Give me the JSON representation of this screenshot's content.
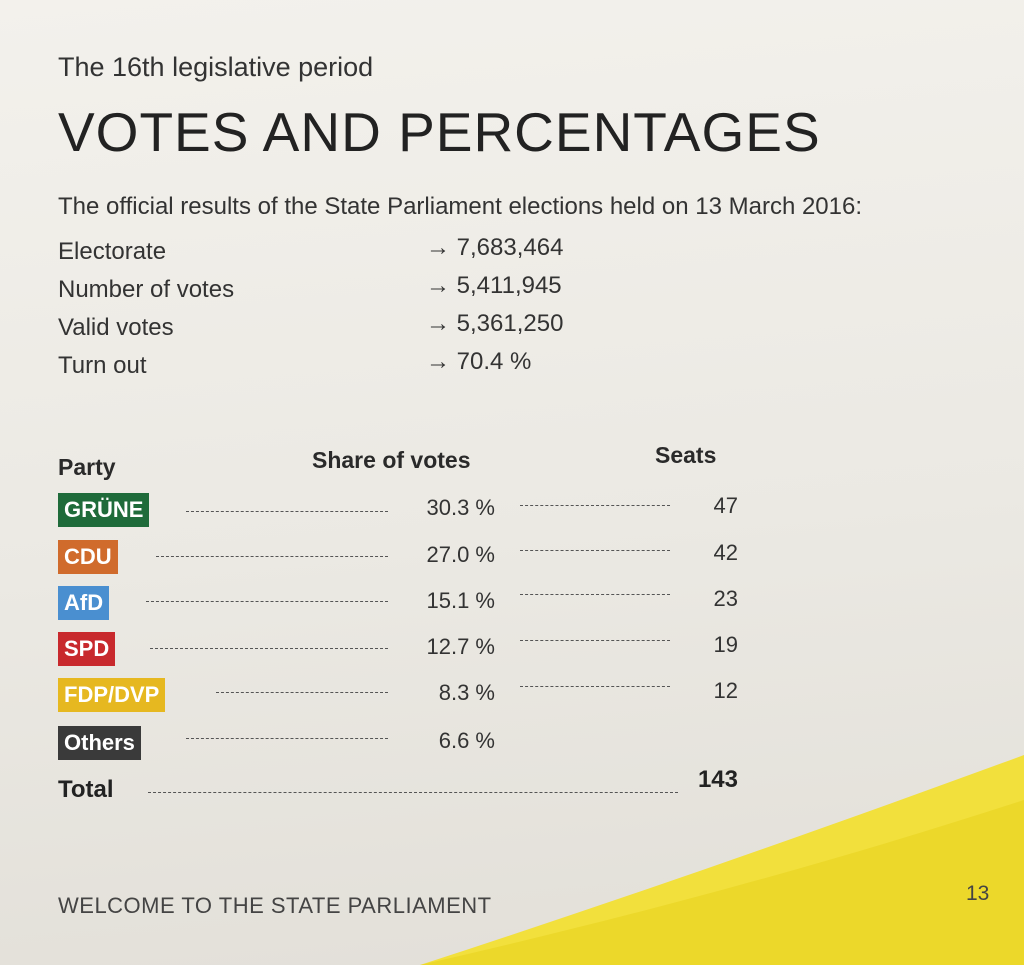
{
  "header": {
    "subtitle": "The 16th legislative period",
    "title": "VOTES AND PERCENTAGES",
    "intro": "The official results of the State Parliament elections held on 13 March 2016:"
  },
  "stats": [
    {
      "label": "Electorate",
      "value": "→ 7,683,464"
    },
    {
      "label": "Number of votes",
      "value": "→ 5,411,945"
    },
    {
      "label": "Valid votes",
      "value": "→ 5,361,250"
    },
    {
      "label": "Turn out",
      "value": "→ 70.4 %"
    }
  ],
  "table": {
    "col_party": "Party",
    "col_share": "Share of votes",
    "col_seats": "Seats",
    "rows": [
      {
        "party": "GRÜNE",
        "share": "30.3 %",
        "seats": "47",
        "color": "#1f6b3a"
      },
      {
        "party": "CDU",
        "share": "27.0 %",
        "seats": "42",
        "color": "#d06b2c"
      },
      {
        "party": "AfD",
        "share": "15.1 %",
        "seats": "23",
        "color": "#4a8fd0"
      },
      {
        "party": "SPD",
        "share": "12.7 %",
        "seats": "19",
        "color": "#c8292d"
      },
      {
        "party": "FDP/DVP",
        "share": "8.3 %",
        "seats": "12",
        "color": "#e6b820"
      },
      {
        "party": "Others",
        "share": "6.6 %",
        "seats": "",
        "color": "#3a3a3a"
      }
    ],
    "total_label": "Total",
    "total_value": "143"
  },
  "footer": {
    "text": "WELCOME TO THE STATE PARLIAMENT",
    "page_number": "13"
  },
  "colors": {
    "accent_yellow": "#f2e03c"
  }
}
